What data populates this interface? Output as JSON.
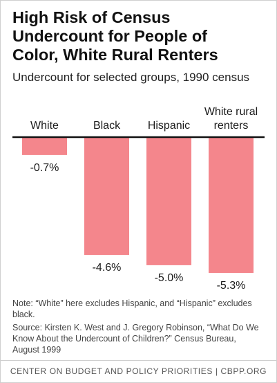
{
  "header": {
    "title": "High Risk of Census\nUndercount for People of\nColor, White Rural Renters",
    "subtitle": "Undercount for selected groups, 1990 census"
  },
  "chart_data": {
    "type": "bar",
    "categories": [
      "White",
      "Black",
      "Hispanic",
      "White rural renters"
    ],
    "values": [
      -0.7,
      -4.6,
      -5.0,
      -5.3
    ],
    "value_labels": [
      "-0.7%",
      "-4.6%",
      "-5.0%",
      "-5.3%"
    ],
    "title": "High Risk of Census Undercount for People of Color, White Rural Renters",
    "subtitle": "Undercount for selected groups, 1990 census",
    "unit": "%",
    "ylim": [
      -5.3,
      0
    ],
    "grid": false,
    "bar_color": "#f4868c",
    "axis_color": "#111111"
  },
  "notes": {
    "note": "Note: “White” here excludes Hispanic, and “Hispanic” excludes black.",
    "source": "Source: Kirsten K. West and J. Gregory Robinson, “What Do We Know About the Undercount of Children?” Census Bureau, August 1999"
  },
  "footer": {
    "text": "CENTER ON BUDGET AND POLICY PRIORITIES | CBPP.ORG"
  }
}
